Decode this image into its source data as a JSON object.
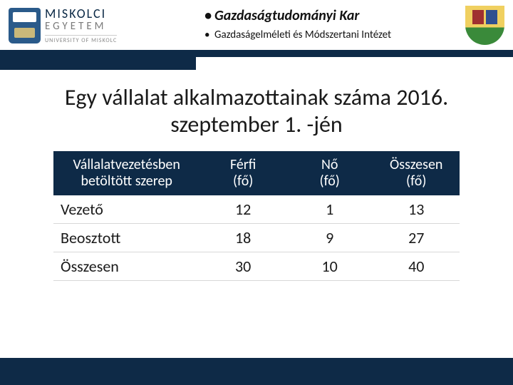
{
  "header": {
    "university_name": "MISKOLCI",
    "university_sub": "EGYETEM",
    "university_en": "UNIVERSITY OF MISKOLC",
    "bullet1": "Gazdaságtudományi Kar",
    "bullet2": "Gazdaságelméleti és Módszertani Intézet"
  },
  "title": "Egy vállalat alkalmazottainak száma 2016. szeptember 1. -jén",
  "table": {
    "columns": [
      "Vállalatvezetésben betöltött szerep",
      "Férfi (fő)",
      "Nő (fő)",
      "Összesen (fő)"
    ],
    "col_header_lines": {
      "c0a": "Vállalatvezetésben",
      "c0b": "betöltött szerep",
      "c1a": "Férfi",
      "c1b": "(fő)",
      "c2a": "Nő",
      "c2b": "(fő)",
      "c3a": "Összesen",
      "c3b": "(fő)"
    },
    "rows": [
      {
        "role": "Vezető",
        "m": "12",
        "f": "1",
        "t": "13"
      },
      {
        "role": "Beosztott",
        "m": "18",
        "f": "9",
        "t": "27"
      },
      {
        "role": "Összesen",
        "m": "30",
        "f": "10",
        "t": "40"
      }
    ]
  },
  "style": {
    "brand_bar_color": "#0e2a47",
    "header_text_color": "#ffffff",
    "body_text_color": "#1a1a1a",
    "row_border_color": "#d8d8d8",
    "title_fontsize": 32,
    "header_fontsize": 20,
    "cell_fontsize": 22
  }
}
